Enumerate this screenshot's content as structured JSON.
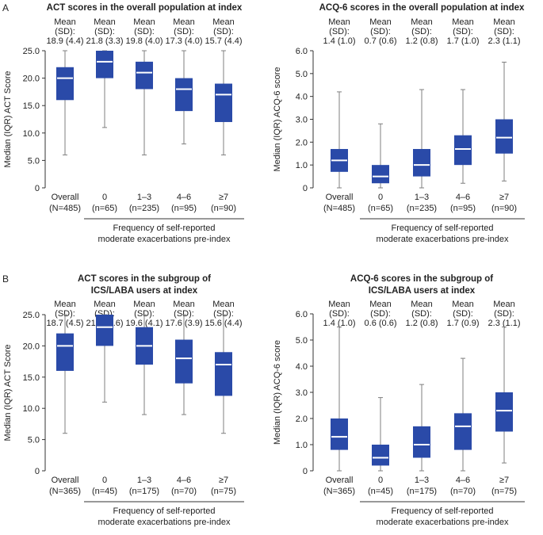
{
  "colors": {
    "box": "#2a4aa8",
    "median": "#ffffff",
    "whisker": "#7f7f7f",
    "axis": "#333333",
    "text": "#222222"
  },
  "panel_labels": [
    "A",
    "B"
  ],
  "xlabel": [
    "Frequency of self-reported",
    "moderate exacerbations pre-index"
  ],
  "chart_data": [
    {
      "type": "box",
      "panel": "A",
      "title": [
        "ACT scores in the overall population at index"
      ],
      "ylabel": "Median (IQR) ACT Score",
      "ylim": [
        0,
        25
      ],
      "yticks": [
        "0",
        "5.0",
        "10.0",
        "15.0",
        "20.0",
        "25.0"
      ],
      "categories": [
        {
          "name": "Overall",
          "n": "(N=485)"
        },
        {
          "name": "0",
          "n": "(n=65)"
        },
        {
          "name": "1–3",
          "n": "(n=235)"
        },
        {
          "name": "4–6",
          "n": "(n=95)"
        },
        {
          "name": "≥7",
          "n": "(n=90)"
        }
      ],
      "means": [
        "18.9 (4.4)",
        "21.8 (3.3)",
        "19.8 (4.0)",
        "17.3 (4.0)",
        "15.7 (4.4)"
      ],
      "boxes": [
        {
          "min": 6,
          "q1": 16,
          "median": 20,
          "q3": 22,
          "max": 25
        },
        {
          "min": 11,
          "q1": 20,
          "median": 23,
          "q3": 25,
          "max": 25
        },
        {
          "min": 6,
          "q1": 18,
          "median": 21,
          "q3": 23,
          "max": 25
        },
        {
          "min": 8,
          "q1": 14,
          "median": 18,
          "q3": 20,
          "max": 25
        },
        {
          "min": 6,
          "q1": 12,
          "median": 17,
          "q3": 19,
          "max": 25
        }
      ]
    },
    {
      "type": "box",
      "panel": "A",
      "title": [
        "ACQ-6 scores in the overall population at index"
      ],
      "ylabel": "Median (IQR) ACQ-6 score",
      "ylim": [
        0,
        6
      ],
      "yticks": [
        "0",
        "1.0",
        "2.0",
        "3.0",
        "4.0",
        "5.0",
        "6.0"
      ],
      "categories": [
        {
          "name": "Overall",
          "n": "(N=485)"
        },
        {
          "name": "0",
          "n": "(n=65)"
        },
        {
          "name": "1–3",
          "n": "(n=235)"
        },
        {
          "name": "4–6",
          "n": "(n=95)"
        },
        {
          "name": "≥7",
          "n": "(n=90)"
        }
      ],
      "means": [
        "1.4 (1.0)",
        "0.7 (0.6)",
        "1.2 (0.8)",
        "1.7 (1.0)",
        "2.3 (1.1)"
      ],
      "boxes": [
        {
          "min": 0,
          "q1": 0.7,
          "median": 1.2,
          "q3": 1.7,
          "max": 4.2
        },
        {
          "min": 0,
          "q1": 0.2,
          "median": 0.5,
          "q3": 1.0,
          "max": 2.8
        },
        {
          "min": 0,
          "q1": 0.5,
          "median": 1.0,
          "q3": 1.7,
          "max": 4.3
        },
        {
          "min": 0.2,
          "q1": 1.0,
          "median": 1.7,
          "q3": 2.3,
          "max": 4.3
        },
        {
          "min": 0.3,
          "q1": 1.5,
          "median": 2.2,
          "q3": 3.0,
          "max": 5.5
        }
      ]
    },
    {
      "type": "box",
      "panel": "B",
      "title": [
        "ACT scores in the subgroup of",
        "ICS/LABA users at index"
      ],
      "ylabel": "Median (IQR) ACT Score",
      "ylim": [
        0,
        25
      ],
      "yticks": [
        "0",
        "5.0",
        "10.0",
        "15.0",
        "20.0",
        "25.0"
      ],
      "categories": [
        {
          "name": "Overall",
          "n": "(N=365)"
        },
        {
          "name": "0",
          "n": "(n=45)"
        },
        {
          "name": "1–3",
          "n": "(n=175)"
        },
        {
          "name": "4–6",
          "n": "(n=70)"
        },
        {
          "name": "≥7",
          "n": "(n=75)"
        }
      ],
      "means": [
        "18.7 (4.5)",
        "21.9 (3.6)",
        "19.6 (4.1)",
        "17.6 (3.9)",
        "15.6 (4.4)"
      ],
      "boxes": [
        {
          "min": 6,
          "q1": 16,
          "median": 20,
          "q3": 22,
          "max": 25
        },
        {
          "min": 11,
          "q1": 20,
          "median": 23,
          "q3": 25,
          "max": 25
        },
        {
          "min": 9,
          "q1": 17,
          "median": 20,
          "q3": 23,
          "max": 25
        },
        {
          "min": 9,
          "q1": 14,
          "median": 18,
          "q3": 21,
          "max": 25
        },
        {
          "min": 6,
          "q1": 12,
          "median": 17,
          "q3": 19,
          "max": 25
        }
      ]
    },
    {
      "type": "box",
      "panel": "B",
      "title": [
        "ACQ-6 scores in the subgroup of",
        "ICS/LABA users at index"
      ],
      "ylabel": "Median (IQR) ACQ-6 score",
      "ylim": [
        0,
        6
      ],
      "yticks": [
        "0",
        "1.0",
        "2.0",
        "3.0",
        "4.0",
        "5.0",
        "6.0"
      ],
      "categories": [
        {
          "name": "Overall",
          "n": "(N=365)"
        },
        {
          "name": "0",
          "n": "(n=45)"
        },
        {
          "name": "1–3",
          "n": "(n=175)"
        },
        {
          "name": "4–6",
          "n": "(n=70)"
        },
        {
          "name": "≥7",
          "n": "(n=75)"
        }
      ],
      "means": [
        "1.4 (1.0)",
        "0.6 (0.6)",
        "1.2 (0.8)",
        "1.7 (0.9)",
        "2.3 (1.1)"
      ],
      "boxes": [
        {
          "min": 0,
          "q1": 0.8,
          "median": 1.3,
          "q3": 2.0,
          "max": 5.5
        },
        {
          "min": 0,
          "q1": 0.2,
          "median": 0.5,
          "q3": 1.0,
          "max": 2.8
        },
        {
          "min": 0,
          "q1": 0.5,
          "median": 1.0,
          "q3": 1.7,
          "max": 3.3
        },
        {
          "min": 0,
          "q1": 0.8,
          "median": 1.7,
          "q3": 2.2,
          "max": 4.3
        },
        {
          "min": 0.3,
          "q1": 1.5,
          "median": 2.3,
          "q3": 3.0,
          "max": 5.5
        }
      ]
    }
  ],
  "mean_label_lines": [
    "Mean",
    "(SD):"
  ]
}
